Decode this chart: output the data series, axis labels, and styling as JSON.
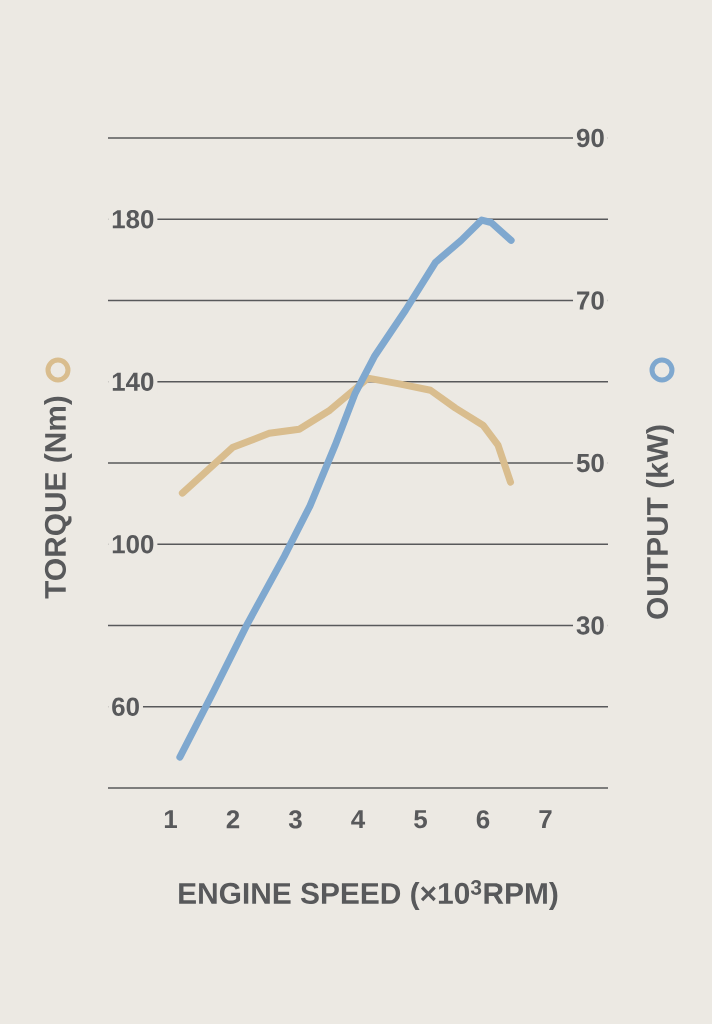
{
  "chart_data": {
    "type": "line",
    "xlabel": "ENGINE SPEED (×10$^{3}$RPM)",
    "ylabel": "TORQUE (Nm)",
    "y2label": "OUTPUT (kW)",
    "xlim": [
      0,
      8
    ],
    "xticks": [
      1,
      2,
      3,
      4,
      5,
      6,
      7
    ],
    "ylim": [
      40,
      200
    ],
    "yticks": [
      {
        "value": 40,
        "label": null
      },
      60,
      {
        "value": 80,
        "label": null
      },
      100,
      {
        "value": 120,
        "label": null
      },
      140,
      {
        "value": 160,
        "label": null
      },
      180,
      {
        "value": 200,
        "label": null
      }
    ],
    "y2lim": [
      10,
      90
    ],
    "y2ticks": [
      30,
      50,
      70,
      90
    ],
    "grid": "y",
    "marker": "none",
    "line_style": "solid",
    "series": [
      {
        "color": "#d9bd8e",
        "x": [
          1.19,
          2.0,
          2.58,
          3.06,
          3.55,
          4.16,
          4.68,
          5.16,
          5.56,
          6.0,
          6.24,
          6.44
        ],
        "values": [
          112.6,
          123.9,
          127.3,
          128.3,
          133,
          140.9,
          139.4,
          137.9,
          133.5,
          129.3,
          124.4,
          115.3
        ]
      },
      {
        "color": "#7fa8cf",
        "axis": "y2",
        "x": [
          1.15,
          1.69,
          2.23,
          2.82,
          3.23,
          3.63,
          3.95,
          4.27,
          4.76,
          5.24,
          5.65,
          5.98,
          6.13,
          6.45
        ],
        "values": [
          13.8,
          21.9,
          30.2,
          38.5,
          44.7,
          52.1,
          58.5,
          63.2,
          68.8,
          74.7,
          77.4,
          79.9,
          79.6,
          77.4
        ]
      }
    ]
  }
}
